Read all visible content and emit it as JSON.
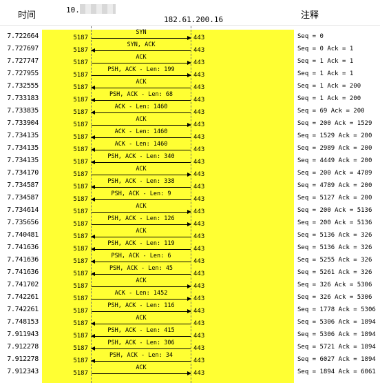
{
  "headers": {
    "time": "时间",
    "comment": "注释",
    "host_a": "10.",
    "host_b": "182.61.200.16"
  },
  "flows": [
    {
      "time": "7.722664",
      "port_a": "5187",
      "label": "SYN",
      "port_b": "443",
      "dir": "right",
      "comment": "Seq = 0"
    },
    {
      "time": "7.727697",
      "port_a": "5187",
      "label": "SYN, ACK",
      "port_b": "443",
      "dir": "left",
      "comment": "Seq = 0 Ack = 1"
    },
    {
      "time": "7.727747",
      "port_a": "5187",
      "label": "ACK",
      "port_b": "443",
      "dir": "right",
      "comment": "Seq = 1 Ack = 1"
    },
    {
      "time": "7.727955",
      "port_a": "5187",
      "label": "PSH, ACK - Len: 199",
      "port_b": "443",
      "dir": "right",
      "comment": "Seq = 1 Ack = 1"
    },
    {
      "time": "7.732555",
      "port_a": "5187",
      "label": "ACK",
      "port_b": "443",
      "dir": "left",
      "comment": "Seq = 1 Ack = 200"
    },
    {
      "time": "7.733183",
      "port_a": "5187",
      "label": "PSH, ACK - Len: 68",
      "port_b": "443",
      "dir": "left",
      "comment": "Seq = 1 Ack = 200"
    },
    {
      "time": "7.733835",
      "port_a": "5187",
      "label": "ACK - Len: 1460",
      "port_b": "443",
      "dir": "left",
      "comment": "Seq = 69 Ack = 200"
    },
    {
      "time": "7.733904",
      "port_a": "5187",
      "label": "ACK",
      "port_b": "443",
      "dir": "right",
      "comment": "Seq = 200 Ack = 1529"
    },
    {
      "time": "7.734135",
      "port_a": "5187",
      "label": "ACK - Len: 1460",
      "port_b": "443",
      "dir": "left",
      "comment": "Seq = 1529 Ack = 200"
    },
    {
      "time": "7.734135",
      "port_a": "5187",
      "label": "ACK - Len: 1460",
      "port_b": "443",
      "dir": "left",
      "comment": "Seq = 2989 Ack = 200"
    },
    {
      "time": "7.734135",
      "port_a": "5187",
      "label": "PSH, ACK - Len: 340",
      "port_b": "443",
      "dir": "left",
      "comment": "Seq = 4449 Ack = 200"
    },
    {
      "time": "7.734170",
      "port_a": "5187",
      "label": "ACK",
      "port_b": "443",
      "dir": "right",
      "comment": "Seq = 200 Ack = 4789"
    },
    {
      "time": "7.734587",
      "port_a": "5187",
      "label": "PSH, ACK - Len: 338",
      "port_b": "443",
      "dir": "left",
      "comment": "Seq = 4789 Ack = 200"
    },
    {
      "time": "7.734587",
      "port_a": "5187",
      "label": "PSH, ACK - Len: 9",
      "port_b": "443",
      "dir": "left",
      "comment": "Seq = 5127 Ack = 200"
    },
    {
      "time": "7.734614",
      "port_a": "5187",
      "label": "ACK",
      "port_b": "443",
      "dir": "right",
      "comment": "Seq = 200 Ack = 5136"
    },
    {
      "time": "7.735656",
      "port_a": "5187",
      "label": "PSH, ACK - Len: 126",
      "port_b": "443",
      "dir": "right",
      "comment": "Seq = 200 Ack = 5136"
    },
    {
      "time": "7.740481",
      "port_a": "5187",
      "label": "ACK",
      "port_b": "443",
      "dir": "left",
      "comment": "Seq = 5136 Ack = 326"
    },
    {
      "time": "7.741636",
      "port_a": "5187",
      "label": "PSH, ACK - Len: 119",
      "port_b": "443",
      "dir": "left",
      "comment": "Seq = 5136 Ack = 326"
    },
    {
      "time": "7.741636",
      "port_a": "5187",
      "label": "PSH, ACK - Len: 6",
      "port_b": "443",
      "dir": "left",
      "comment": "Seq = 5255 Ack = 326"
    },
    {
      "time": "7.741636",
      "port_a": "5187",
      "label": "PSH, ACK - Len: 45",
      "port_b": "443",
      "dir": "left",
      "comment": "Seq = 5261 Ack = 326"
    },
    {
      "time": "7.741702",
      "port_a": "5187",
      "label": "ACK",
      "port_b": "443",
      "dir": "right",
      "comment": "Seq = 326 Ack = 5306"
    },
    {
      "time": "7.742261",
      "port_a": "5187",
      "label": "ACK - Len: 1452",
      "port_b": "443",
      "dir": "right",
      "comment": "Seq = 326 Ack = 5306"
    },
    {
      "time": "7.742261",
      "port_a": "5187",
      "label": "PSH, ACK - Len: 116",
      "port_b": "443",
      "dir": "right",
      "comment": "Seq = 1778 Ack = 5306"
    },
    {
      "time": "7.748153",
      "port_a": "5187",
      "label": "ACK",
      "port_b": "443",
      "dir": "left",
      "comment": "Seq = 5306 Ack = 1894"
    },
    {
      "time": "7.911943",
      "port_a": "5187",
      "label": "PSH, ACK - Len: 415",
      "port_b": "443",
      "dir": "left",
      "comment": "Seq = 5306 Ack = 1894"
    },
    {
      "time": "7.912278",
      "port_a": "5187",
      "label": "PSH, ACK - Len: 306",
      "port_b": "443",
      "dir": "left",
      "comment": "Seq = 5721 Ack = 1894"
    },
    {
      "time": "7.912278",
      "port_a": "5187",
      "label": "PSH, ACK - Len: 34",
      "port_b": "443",
      "dir": "left",
      "comment": "Seq = 6027 Ack = 1894"
    },
    {
      "time": "7.912343",
      "port_a": "5187",
      "label": "ACK",
      "port_b": "443",
      "dir": "right",
      "comment": "Seq = 1894 Ack = 6061"
    }
  ]
}
